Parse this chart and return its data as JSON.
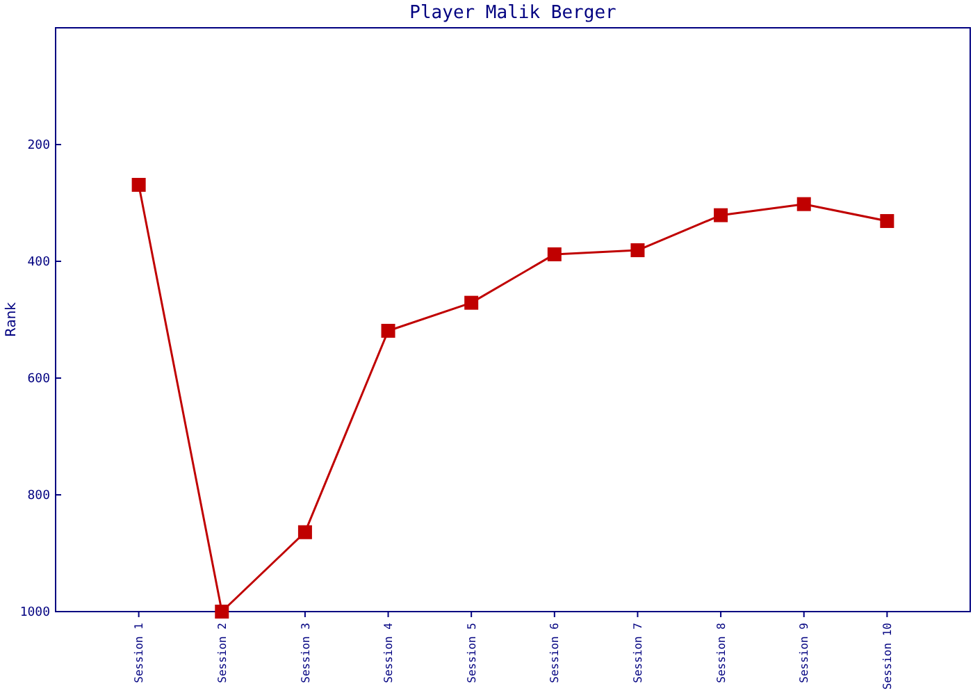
{
  "chart_data": {
    "type": "line",
    "title": "Player Malik Berger",
    "ylabel": "Rank",
    "categories": [
      "Session 1",
      "Session 2",
      "Session 3",
      "Session 4",
      "Session 5",
      "Session 6",
      "Session 7",
      "Session 8",
      "Session 9",
      "Session 10"
    ],
    "series": [
      {
        "color": "#c00000",
        "values": [
          269,
          1000,
          864,
          519,
          471,
          388,
          381,
          321,
          302,
          331
        ]
      }
    ],
    "ylim": [
      1000,
      0
    ],
    "yticks": [
      200,
      400,
      600,
      800,
      1000
    ],
    "marker": "square"
  }
}
